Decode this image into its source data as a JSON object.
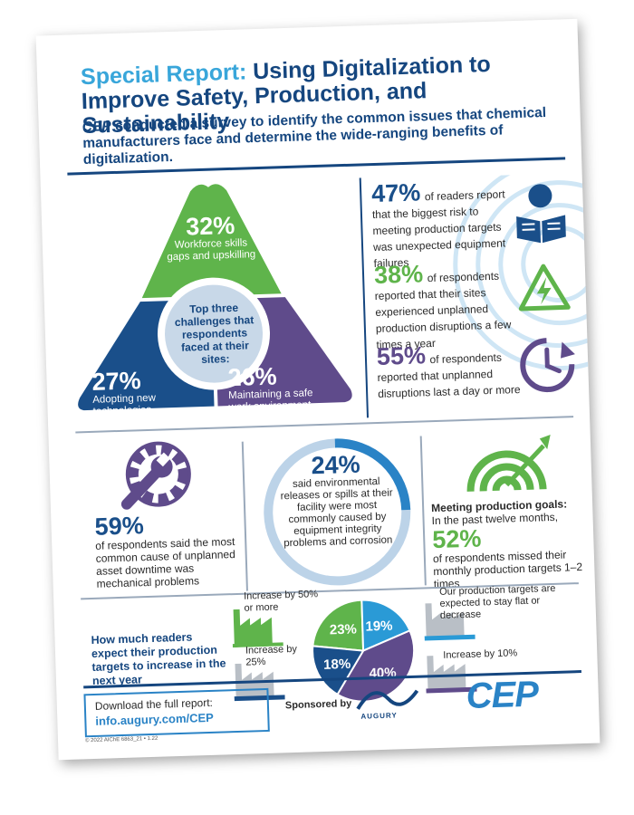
{
  "header": {
    "title_lead": "Special Report:",
    "title_rest": " Using Digitalization to Improve Safety, Production, and Sustainability",
    "subtitle_pub": "CEP",
    "subtitle_rest": " conducted a survey to identify the common issues that chemical manufacturers face and determine the wide-ranging benefits of digitalization."
  },
  "challenges": {
    "center": "Top three challenges that respondents faced at their sites:",
    "items": [
      {
        "pct": "32%",
        "label": "Workforce skills gaps and upskilling"
      },
      {
        "pct": "27%",
        "label": "Adopting new technologies"
      },
      {
        "pct": "26%",
        "label": "Maintaining a safe work environment"
      }
    ]
  },
  "stats_right": [
    {
      "pct": "47%",
      "text": "of readers report that the biggest risk to meeting production targets was unexpected equipment failures",
      "icon": "reading-person-icon"
    },
    {
      "pct": "38%",
      "text": "of respondents reported that their sites experienced unplanned production disruptions a few times a year",
      "icon": "warning-bolt-icon"
    },
    {
      "pct": "55%",
      "text": "of respondents reported that unplanned disruptions last a day or more",
      "icon": "clock-arrow-icon"
    }
  ],
  "mid": {
    "downtime": {
      "pct": "59%",
      "text": "of respondents said the most common cause of unplanned asset downtime was mechanical problems"
    },
    "environment": {
      "pct": "24%",
      "text": "said environmental releases or spills at their facility were most commonly caused by equipment integrity problems and corrosion"
    },
    "goals": {
      "heading": "Meeting production goals:",
      "lead": "In the past twelve months,",
      "pct": "52%",
      "text": "of respondents missed their monthly production targets 1–2 times"
    }
  },
  "expect": {
    "question": "How much readers expect their production targets to increase in the next year",
    "labels": {
      "fifty": "Increase by 50% or more",
      "twentyfive": "Increase by 25%",
      "flat": "Our production targets are expected to stay flat or decrease",
      "ten": "Increase by 10%"
    }
  },
  "chart_data": {
    "type": "pie",
    "title": "How much readers expect their production targets to increase in the next year",
    "slices": [
      {
        "label": "Increase by 50% or more",
        "value": 23,
        "display": "23%",
        "color": "#5fb44b"
      },
      {
        "label": "Our production targets are expected to stay flat or decrease",
        "value": 19,
        "display": "19%",
        "color": "#2a9ad6"
      },
      {
        "label": "Increase by 10%",
        "value": 40,
        "display": "40%",
        "color": "#5f4b8b"
      },
      {
        "label": "Increase by 25%",
        "value": 18,
        "display": "18%",
        "color": "#1a4f8a"
      }
    ]
  },
  "footer": {
    "download": "Download the full report:",
    "url": "info.augury.com/CEP",
    "legal": "© 2022 AIChE 6863_21 • 1.22",
    "sponsored": "Sponsored by",
    "augury": "AUGURY",
    "cep": "CEP"
  },
  "colors": {
    "navy": "#15467f",
    "blue": "#2a83c6",
    "green": "#5fb44b",
    "purple": "#5f4b8b"
  }
}
